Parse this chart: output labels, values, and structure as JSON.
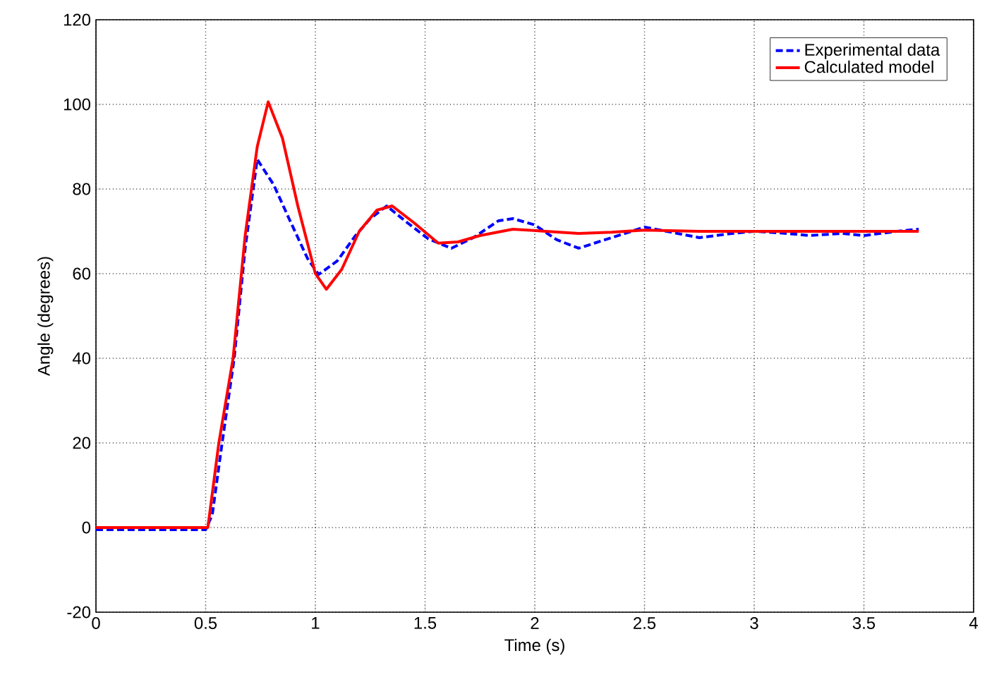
{
  "chart_data": {
    "type": "line",
    "xlabel": "Time (s)",
    "ylabel": "Angle (degrees)",
    "xlim": [
      0,
      4
    ],
    "ylim": [
      -20,
      120
    ],
    "xticks": [
      0,
      0.5,
      1,
      1.5,
      2,
      2.5,
      3,
      3.5,
      4
    ],
    "yticks": [
      -20,
      0,
      20,
      40,
      60,
      80,
      100,
      120
    ],
    "grid": true,
    "legend": "top right",
    "marker": "none",
    "series": [
      {
        "name": "Experimental data",
        "color": "#0000ff",
        "line_style": "dashed",
        "x": [
          0,
          0.3,
          0.5,
          0.53,
          0.575,
          0.63,
          0.68,
          0.735,
          0.81,
          0.88,
          0.965,
          1.015,
          1.1,
          1.18,
          1.25,
          1.325,
          1.42,
          1.515,
          1.62,
          1.72,
          1.835,
          1.9,
          2.0,
          2.1,
          2.2,
          2.35,
          2.5,
          2.65,
          2.75,
          2.9,
          3.0,
          3.15,
          3.25,
          3.4,
          3.5,
          3.65,
          3.75
        ],
        "values": [
          -0.5,
          -0.5,
          -0.5,
          3,
          20,
          40,
          66,
          87,
          81,
          73,
          63.5,
          59.8,
          63,
          68.8,
          73,
          76,
          72,
          68.2,
          66,
          68.5,
          72.5,
          73,
          71.5,
          68,
          66,
          68.5,
          71,
          69.5,
          68.5,
          69.5,
          70,
          69.5,
          69,
          69.5,
          69,
          70,
          70.5
        ]
      },
      {
        "name": "Calculated model",
        "color": "#ff0000",
        "line_style": "solid",
        "x": [
          0,
          0.3,
          0.51,
          0.56,
          0.625,
          0.68,
          0.735,
          0.785,
          0.85,
          0.92,
          1.0,
          1.05,
          1.12,
          1.2,
          1.28,
          1.35,
          1.45,
          1.56,
          1.65,
          1.75,
          1.9,
          2.05,
          2.2,
          2.35,
          2.5,
          2.75,
          3.0,
          3.25,
          3.5,
          3.75
        ],
        "values": [
          0,
          0,
          0,
          20,
          40,
          69,
          90,
          100.6,
          92,
          76,
          60,
          56.3,
          61,
          70,
          75,
          76,
          72,
          67.2,
          67.5,
          69,
          70.5,
          70,
          69.5,
          69.8,
          70.3,
          70,
          70,
          70,
          70,
          70
        ]
      }
    ]
  }
}
